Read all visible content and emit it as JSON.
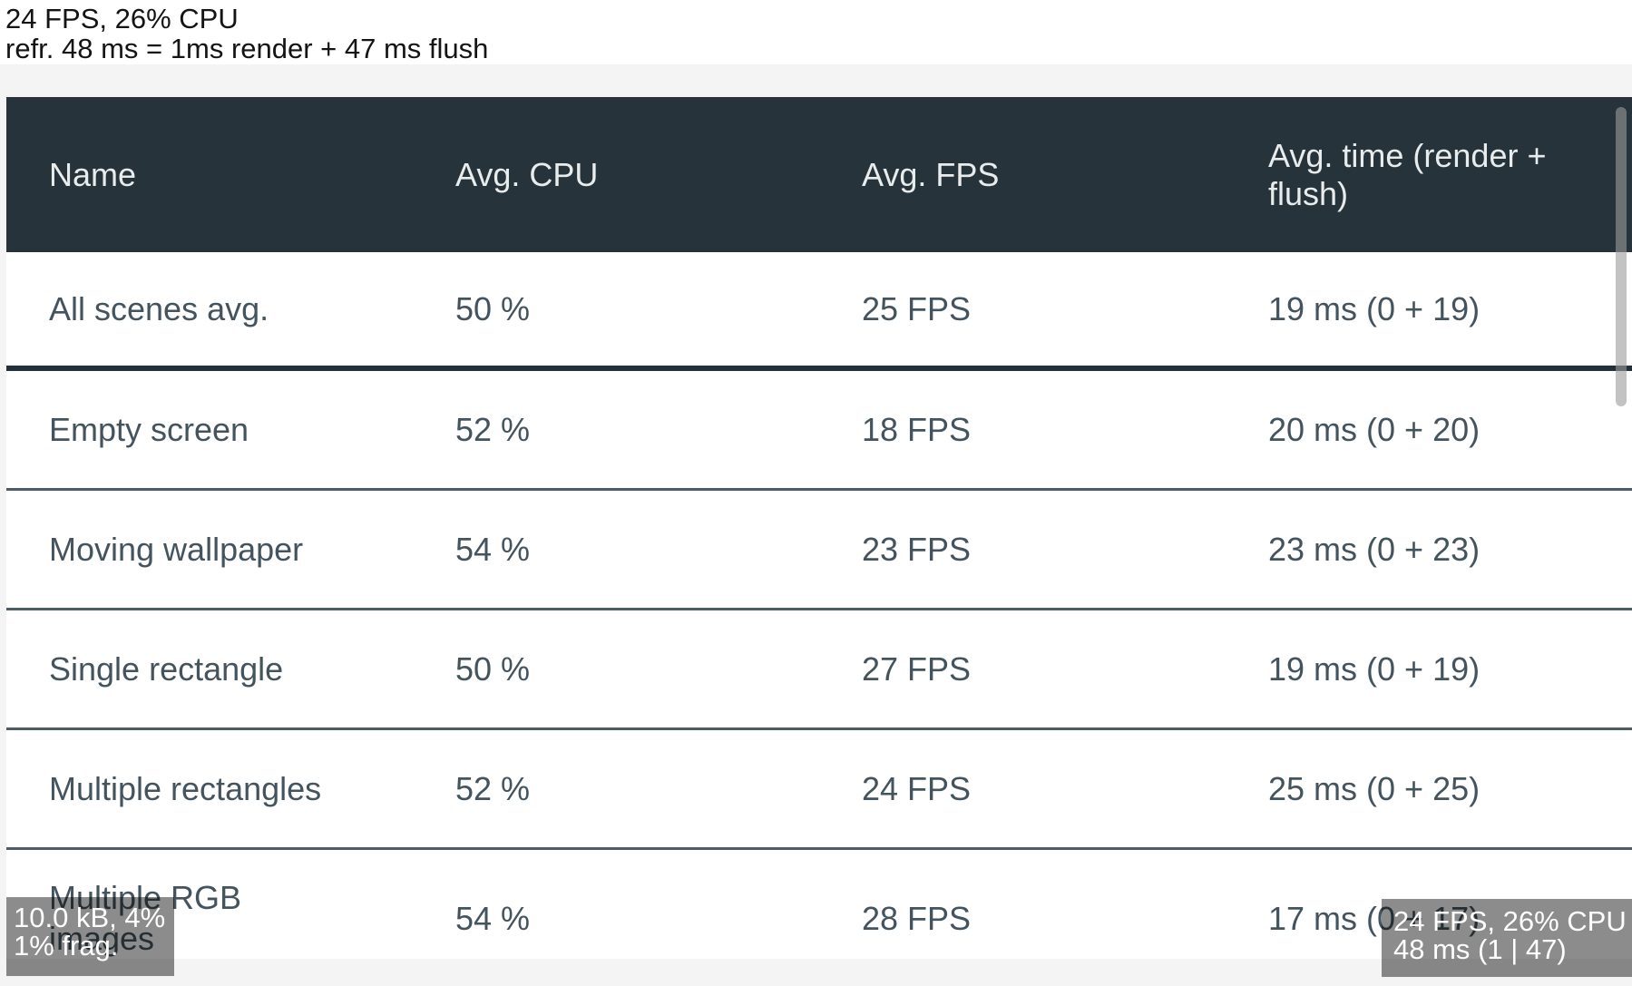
{
  "perf_label": {
    "line1": "24 FPS, 26% CPU",
    "line2": "refr. 48 ms = 1ms render + 47 ms flush"
  },
  "table": {
    "columns": [
      "Name",
      "Avg. CPU",
      "Avg. FPS",
      "Avg. time (render + flush)"
    ],
    "rows": [
      {
        "name": "All scenes avg.",
        "cpu": "50 %",
        "fps": "25 FPS",
        "time": "19 ms (0 + 19)"
      },
      {
        "name": "Empty screen",
        "cpu": "52 %",
        "fps": "18 FPS",
        "time": "20 ms (0 + 20)"
      },
      {
        "name": "Moving wallpaper",
        "cpu": "54 %",
        "fps": "23 FPS",
        "time": "23 ms (0 + 23)"
      },
      {
        "name": "Single rectangle",
        "cpu": "50 %",
        "fps": "27 FPS",
        "time": "19 ms (0 + 19)"
      },
      {
        "name": "Multiple rectangles",
        "cpu": "52 %",
        "fps": "24 FPS",
        "time": "25 ms (0 + 25)"
      },
      {
        "name": "Multiple RGB images",
        "cpu": "54 %",
        "fps": "28 FPS",
        "time": "17 ms (0 + 17)"
      }
    ]
  },
  "monitors": {
    "memory": {
      "line1": "10.0 kB, 4%",
      "line2": "1% frag."
    },
    "performance": {
      "line1": "24 FPS, 26% CPU",
      "line2": "48 ms (1 | 47)"
    }
  },
  "colors": {
    "header_bg": "#27333b",
    "header_text": "#e8ecec",
    "cell_text": "#44545e",
    "row_separator": "#4d5d66",
    "summary_separator": "#243039",
    "page_bg": "#f4f4f5",
    "monitor_bg": "rgba(0,0,0,0.45)",
    "monitor_text": "#ffffff",
    "scrollbar": "rgba(155,155,155,0.6)"
  }
}
